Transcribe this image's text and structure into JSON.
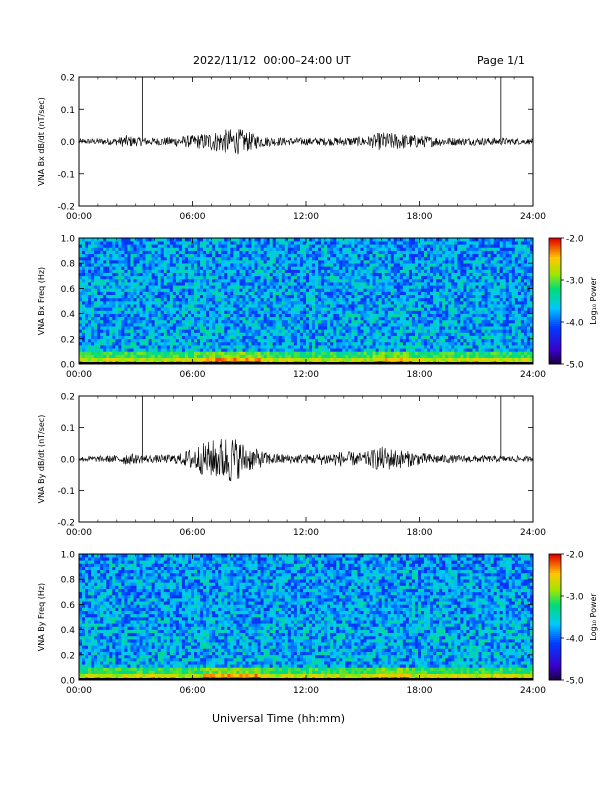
{
  "header": {
    "title": "2022/11/12  00:00–24:00 UT",
    "page": "Page 1/1"
  },
  "footer": {
    "xlabel": "Universal Time (hh:mm)"
  },
  "colors": {
    "trace": "#000000",
    "axis": "#000000"
  },
  "chart_data": [
    {
      "type": "line",
      "ylabel": "VNA Bx dB/dt (nT/sec)",
      "x_ticks": [
        "00:00",
        "06:00",
        "12:00",
        "18:00",
        "24:00"
      ],
      "xlim": [
        0,
        24
      ],
      "ylim": [
        -0.2,
        0.2
      ],
      "y_ticks": [
        "0.2",
        "0.1",
        "0.0",
        "-0.1",
        "-0.2"
      ],
      "series": [
        {
          "envelope_hours": [
            0,
            1,
            2,
            2.5,
            3,
            4,
            5,
            6,
            7,
            7.5,
            8,
            8.5,
            9,
            9.5,
            10,
            11,
            12,
            13,
            14,
            15,
            15.5,
            16,
            17,
            18,
            19,
            20,
            21,
            22,
            23,
            24
          ],
          "envelope_amp": [
            0.008,
            0.01,
            0.012,
            0.02,
            0.015,
            0.012,
            0.015,
            0.02,
            0.03,
            0.035,
            0.04,
            0.04,
            0.03,
            0.02,
            0.015,
            0.012,
            0.012,
            0.012,
            0.014,
            0.015,
            0.02,
            0.03,
            0.025,
            0.02,
            0.015,
            0.012,
            0.012,
            0.012,
            0.01,
            0.008
          ]
        }
      ],
      "spikes": [
        {
          "x": 3.35,
          "top": 0.2
        },
        {
          "x": 22.3,
          "top": 0.2
        }
      ]
    },
    {
      "type": "heatmap",
      "ylabel": "VNA Bx Freq (Hz)",
      "x_ticks": [
        "00:00",
        "06:00",
        "12:00",
        "18:00",
        "24:00"
      ],
      "xlim": [
        0,
        24
      ],
      "ylim": [
        0.0,
        1.0
      ],
      "y_ticks": [
        "1.0",
        "0.8",
        "0.6",
        "0.4",
        "0.2",
        "0.0"
      ],
      "colorbar": {
        "label": "Log₁₀ Power",
        "range": [
          -5.0,
          -2.0
        ],
        "ticks": [
          "-2.0",
          "-3.0",
          "-4.0",
          "-5.0"
        ]
      }
    },
    {
      "type": "line",
      "ylabel": "VNA By dB/dt (nT/sec)",
      "x_ticks": [
        "00:00",
        "06:00",
        "12:00",
        "18:00",
        "24:00"
      ],
      "xlim": [
        0,
        24
      ],
      "ylim": [
        -0.2,
        0.2
      ],
      "y_ticks": [
        "0.2",
        "0.1",
        "0.0",
        "-0.1",
        "-0.2"
      ],
      "series": [
        {
          "envelope_hours": [
            0,
            1,
            2,
            2.5,
            3,
            4,
            5,
            5.5,
            6,
            6.5,
            7,
            7.5,
            8,
            8.5,
            9,
            10,
            11,
            12,
            13,
            14,
            15,
            15.5,
            16,
            17,
            18,
            19,
            20,
            21,
            22,
            23,
            24
          ],
          "envelope_amp": [
            0.008,
            0.01,
            0.012,
            0.02,
            0.015,
            0.012,
            0.015,
            0.02,
            0.04,
            0.05,
            0.06,
            0.07,
            0.08,
            0.06,
            0.04,
            0.02,
            0.015,
            0.015,
            0.02,
            0.025,
            0.02,
            0.03,
            0.04,
            0.03,
            0.02,
            0.015,
            0.012,
            0.012,
            0.01,
            0.01,
            0.008
          ]
        }
      ],
      "spikes": [
        {
          "x": 3.35,
          "top": 0.2
        },
        {
          "x": 22.3,
          "top": 0.2
        }
      ]
    },
    {
      "type": "heatmap",
      "ylabel": "VNA By Freq (Hz)",
      "x_ticks": [
        "00:00",
        "06:00",
        "12:00",
        "18:00",
        "24:00"
      ],
      "xlim": [
        0,
        24
      ],
      "ylim": [
        0.0,
        1.0
      ],
      "y_ticks": [
        "1.0",
        "0.8",
        "0.6",
        "0.4",
        "0.2",
        "0.0"
      ],
      "colorbar": {
        "label": "Log₁₀ Power",
        "range": [
          -5.0,
          -2.0
        ],
        "ticks": [
          "-2.0",
          "-3.0",
          "-4.0",
          "-5.0"
        ]
      }
    }
  ]
}
